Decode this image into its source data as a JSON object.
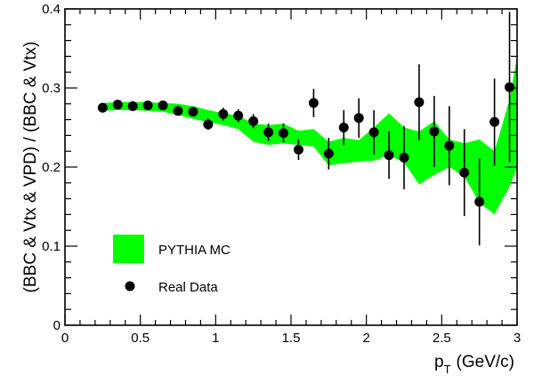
{
  "chart_data": {
    "type": "scatter",
    "ylabel": "(BBC & Vtx & VPD) / (BBC & Vtx)",
    "xlabel_main": "p",
    "xlabel_sub": "T",
    "xlabel_unit": "(GeV/c)",
    "xlim": [
      0,
      3
    ],
    "ylim": [
      0,
      0.4
    ],
    "x_ticks": [
      0,
      0.5,
      1,
      1.5,
      2,
      2.5,
      3
    ],
    "x_tick_labels": [
      "0",
      "0.5",
      "1",
      "1.5",
      "2",
      "2.5",
      "3"
    ],
    "y_ticks": [
      0,
      0.1,
      0.2,
      0.3,
      0.4
    ],
    "y_tick_labels": [
      "0",
      "0.1",
      "0.2",
      "0.3",
      "0.4"
    ],
    "grid": false,
    "legend_position": "bottom-left",
    "band_color": "#00ff00",
    "point_color": "#000000",
    "series": [
      {
        "name": "PYTHIA MC",
        "kind": "band",
        "x": [
          0.25,
          0.35,
          0.45,
          0.55,
          0.65,
          0.75,
          0.85,
          0.95,
          1.05,
          1.15,
          1.25,
          1.35,
          1.45,
          1.55,
          1.65,
          1.75,
          1.85,
          1.95,
          2.05,
          2.15,
          2.25,
          2.35,
          2.45,
          2.55,
          2.65,
          2.75,
          2.85,
          2.95,
          3.0
        ],
        "low": [
          0.271,
          0.272,
          0.272,
          0.271,
          0.27,
          0.266,
          0.261,
          0.257,
          0.253,
          0.248,
          0.232,
          0.228,
          0.23,
          0.228,
          0.226,
          0.202,
          0.205,
          0.207,
          0.208,
          0.215,
          0.206,
          0.178,
          0.19,
          0.2,
          0.188,
          0.155,
          0.14,
          0.175,
          0.2
        ],
        "high": [
          0.281,
          0.282,
          0.282,
          0.282,
          0.281,
          0.28,
          0.277,
          0.272,
          0.268,
          0.265,
          0.255,
          0.253,
          0.255,
          0.246,
          0.248,
          0.232,
          0.237,
          0.234,
          0.25,
          0.268,
          0.25,
          0.245,
          0.258,
          0.235,
          0.23,
          0.235,
          0.22,
          0.285,
          0.34
        ]
      },
      {
        "name": "Real Data",
        "kind": "points",
        "x": [
          0.25,
          0.35,
          0.45,
          0.55,
          0.65,
          0.75,
          0.85,
          0.95,
          1.05,
          1.15,
          1.25,
          1.35,
          1.45,
          1.55,
          1.65,
          1.75,
          1.85,
          1.95,
          2.05,
          2.15,
          2.25,
          2.35,
          2.45,
          2.55,
          2.65,
          2.75,
          2.85,
          2.95
        ],
        "y": [
          0.275,
          0.279,
          0.277,
          0.278,
          0.278,
          0.271,
          0.27,
          0.254,
          0.267,
          0.265,
          0.258,
          0.244,
          0.243,
          0.222,
          0.281,
          0.217,
          0.25,
          0.262,
          0.244,
          0.215,
          0.212,
          0.282,
          0.245,
          0.227,
          0.193,
          0.156,
          0.257,
          0.301
        ],
        "err": [
          0.004,
          0.004,
          0.004,
          0.004,
          0.004,
          0.005,
          0.006,
          0.007,
          0.008,
          0.008,
          0.009,
          0.011,
          0.012,
          0.013,
          0.018,
          0.02,
          0.022,
          0.025,
          0.028,
          0.03,
          0.04,
          0.048,
          0.045,
          0.05,
          0.055,
          0.055,
          0.055,
          0.095
        ]
      }
    ]
  }
}
